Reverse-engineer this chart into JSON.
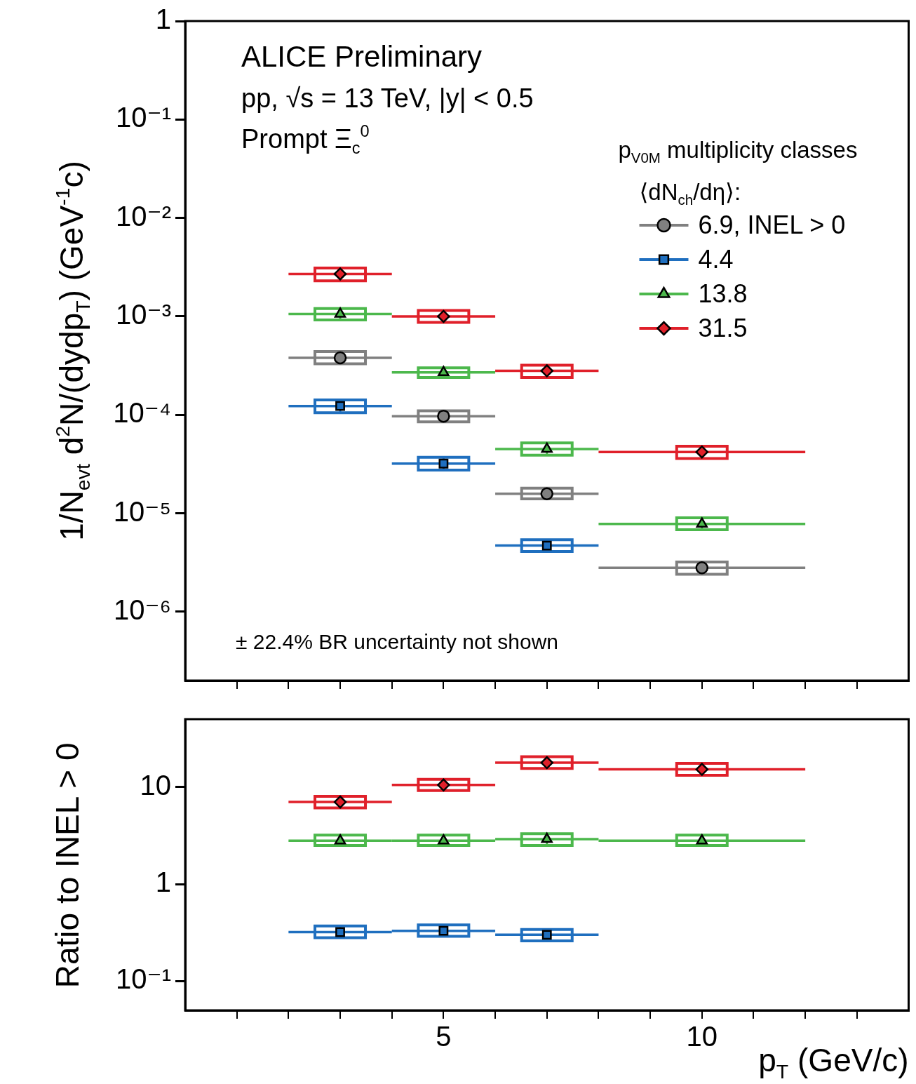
{
  "chart_data": [
    {
      "type": "scatter",
      "ylabel": "1/N$_{evt}$ d$^{2}$N/(dydp$_{T}$) (GeV$^{-1}$c)",
      "legend_title": "p$_{V0M}$ multiplicity classes\n⟨dN$_{ch}$/dη⟩:",
      "legend": "top right",
      "log": "y",
      "grid": false,
      "tick_labels": "y",
      "annotations": [
        "ALICE Preliminary",
        "pp, √s = 13 TeV, |y| < 0.5",
        "Prompt Ξ$_{c}$$^{0}$",
        "± 22.4% BR uncertainty not shown"
      ],
      "x": [
        3,
        5,
        7,
        10
      ],
      "xlim": [
        0,
        14
      ],
      "xticks": [
        {
          "value": 1,
          "label": null
        },
        {
          "value": 2,
          "label": null
        },
        {
          "value": 3,
          "label": null
        },
        {
          "value": 4,
          "label": null
        },
        {
          "value": 5,
          "label": null
        },
        {
          "value": 6,
          "label": null
        },
        {
          "value": 7,
          "label": null
        },
        {
          "value": 8,
          "label": null
        },
        {
          "value": 9,
          "label": null
        },
        {
          "value": 10,
          "label": null
        },
        {
          "value": 11,
          "label": null
        },
        {
          "value": 12,
          "label": null
        },
        {
          "value": 13,
          "label": null
        }
      ],
      "ylim": [
        2e-07,
        1
      ],
      "yticks": [
        {
          "value": 1e-06,
          "label": "10⁻⁶"
        },
        {
          "value": 1e-05,
          "label": "10⁻⁵"
        },
        {
          "value": 0.0001,
          "label": "10⁻⁴"
        },
        {
          "value": 0.001,
          "label": "10⁻³"
        },
        {
          "value": 0.01,
          "label": "10⁻²"
        },
        {
          "value": 0.1,
          "label": "10⁻¹"
        },
        {
          "value": 1,
          "label": "1"
        }
      ],
      "series": [
        {
          "name": "6.9, INEL > 0",
          "color": "#808080",
          "marker": "circle",
          "values": [
            0.00038,
            9.7e-05,
            1.58e-05,
            2.8e-06
          ],
          "xerrors": [
            1,
            1,
            1,
            2
          ],
          "errors": [
            [
              0.00033,
              0.00044
            ],
            [
              8.5e-05,
              0.00011
            ],
            [
              1.4e-05,
              1.8e-05
            ],
            [
              2.4e-06,
              3.2e-06
            ]
          ]
        },
        {
          "name": "4.4",
          "color": "#1f6fbf",
          "marker": "square",
          "values": [
            0.000123,
            3.2e-05,
            4.7e-06,
            null
          ],
          "xerrors": [
            1,
            1,
            1,
            null
          ],
          "errors": [
            [
              0.000105,
              0.000142
            ],
            [
              2.75e-05,
              3.7e-05
            ],
            [
              4.1e-06,
              5.4e-06
            ],
            null
          ]
        },
        {
          "name": "13.8",
          "color": "#4cb84c",
          "marker": "triangle",
          "values": [
            0.00106,
            0.00027,
            4.5e-05,
            7.8e-06
          ],
          "xerrors": [
            1,
            1,
            1,
            2
          ],
          "errors": [
            [
              0.00092,
              0.0012
            ],
            [
              0.00024,
              0.0003
            ],
            [
              3.9e-05,
              5.2e-05
            ],
            [
              6.8e-06,
              9e-06
            ]
          ]
        },
        {
          "name": "31.5",
          "color": "#e0202a",
          "marker": "diamond",
          "values": [
            0.0027,
            0.001,
            0.00028,
            4.2e-05
          ],
          "xerrors": [
            1,
            1,
            1,
            2
          ],
          "errors": [
            [
              0.0023,
              0.0031
            ],
            [
              0.00087,
              0.00115
            ],
            [
              0.00024,
              0.00032
            ],
            [
              3.6e-05,
              4.8e-05
            ]
          ]
        }
      ]
    },
    {
      "type": "scatter",
      "ylabel": "Ratio to INEL > 0",
      "xlabel": "p$_{T}$ (GeV/c)",
      "log": "y",
      "grid": false,
      "x": [
        3,
        5,
        7,
        10
      ],
      "xlim": [
        0,
        14
      ],
      "xticks": [
        {
          "value": 1,
          "label": null
        },
        {
          "value": 2,
          "label": null
        },
        {
          "value": 3,
          "label": null
        },
        {
          "value": 4,
          "label": null
        },
        5,
        {
          "value": 6,
          "label": null
        },
        {
          "value": 7,
          "label": null
        },
        {
          "value": 8,
          "label": null
        },
        {
          "value": 9,
          "label": null
        },
        10,
        {
          "value": 11,
          "label": null
        },
        {
          "value": 12,
          "label": null
        },
        {
          "value": 13,
          "label": null
        }
      ],
      "ylim": [
        0.05,
        50
      ],
      "yticks": [
        {
          "value": 0.1,
          "label": "10⁻¹"
        },
        {
          "value": 1,
          "label": "1"
        },
        {
          "value": 10,
          "label": "10"
        }
      ],
      "series": [
        {
          "color": "#1f6fbf",
          "marker": "square",
          "values": [
            0.32,
            0.33,
            0.3,
            null
          ],
          "xerrors": [
            1,
            1,
            1,
            null
          ],
          "errors": [
            [
              0.28,
              0.37
            ],
            [
              0.29,
              0.38
            ],
            [
              0.26,
              0.34
            ],
            null
          ]
        },
        {
          "color": "#4cb84c",
          "marker": "triangle",
          "values": [
            2.8,
            2.8,
            2.9,
            2.8
          ],
          "xerrors": [
            1,
            1,
            1,
            2
          ],
          "errors": [
            [
              2.5,
              3.2
            ],
            [
              2.5,
              3.2
            ],
            [
              2.5,
              3.3
            ],
            [
              2.5,
              3.2
            ]
          ]
        },
        {
          "color": "#e0202a",
          "marker": "diamond",
          "values": [
            7.0,
            10.5,
            17.8,
            15.2
          ],
          "xerrors": [
            1,
            1,
            1,
            2
          ],
          "errors": [
            [
              6.1,
              8.0
            ],
            [
              9.2,
              12
            ],
            [
              15.5,
              20.5
            ],
            [
              13.2,
              17.5
            ]
          ]
        }
      ]
    }
  ]
}
